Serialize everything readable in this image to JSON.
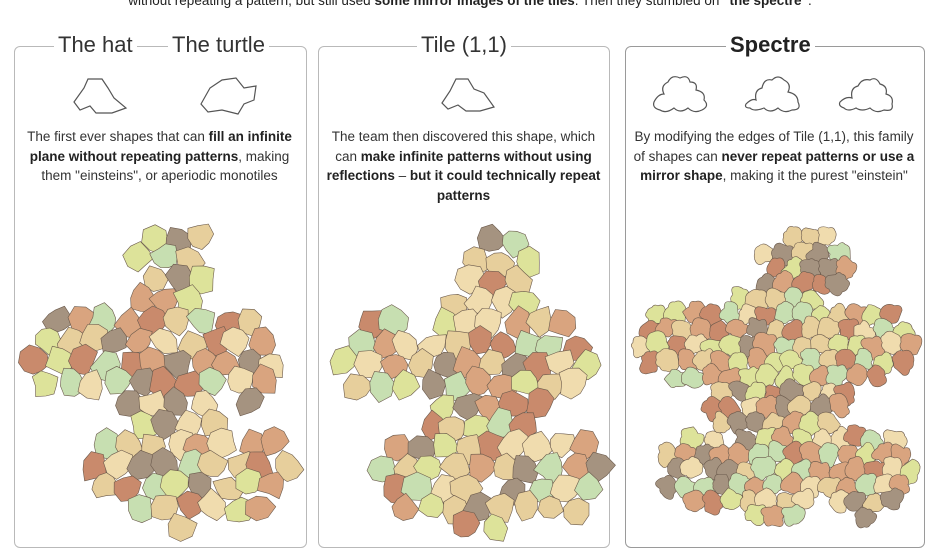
{
  "intro": {
    "part1": "without repeating a pattern, but still used ",
    "bold1": "some mirror images of the tiles",
    "part2": ". Then they stumbled on ",
    "bold2": "\"the spectre\"",
    "part3": "."
  },
  "panels": [
    {
      "titles": [
        "The hat",
        "The turtle"
      ],
      "shape_icons": [
        "hat-shape-icon",
        "turtle-shape-icon"
      ],
      "desc": [
        {
          "t": "The first ever shapes that can ",
          "b": false
        },
        {
          "t": "fill an infinite plane without repeating patterns",
          "b": true
        },
        {
          "t": ", making them \"einsteins\", or aperiodic monotiles",
          "b": false
        }
      ]
    },
    {
      "titles": [
        "Tile (1,1)"
      ],
      "shape_icons": [
        "tile-1-1-shape-icon"
      ],
      "desc": [
        {
          "t": "The team then discovered this shape, which can ",
          "b": false
        },
        {
          "t": "make infinite patterns without using reflections",
          "b": true
        },
        {
          "t": " – ",
          "b": false
        },
        {
          "t": "but it could technically repeat patterns",
          "b": true
        }
      ]
    },
    {
      "titles": [
        "Spectre"
      ],
      "shape_icons": [
        "spectre-shape-icon",
        "spectre-shape-icon",
        "spectre-shape-icon"
      ],
      "desc": [
        {
          "t": "By modifying the edges of Tile (1,1), this family of shapes can ",
          "b": false
        },
        {
          "t": "never repeat patterns or use a mirror shape",
          "b": true
        },
        {
          "t": ", making it the purest \"einstein\"",
          "b": false
        }
      ]
    }
  ],
  "colors": {
    "tile_palette": [
      "#d9a47f",
      "#c98a6c",
      "#e7cf9c",
      "#a59380",
      "#dde39a",
      "#c7dfb1",
      "#f0dcae"
    ],
    "panel_border": "#b9b9b9",
    "outline": "#555555"
  }
}
